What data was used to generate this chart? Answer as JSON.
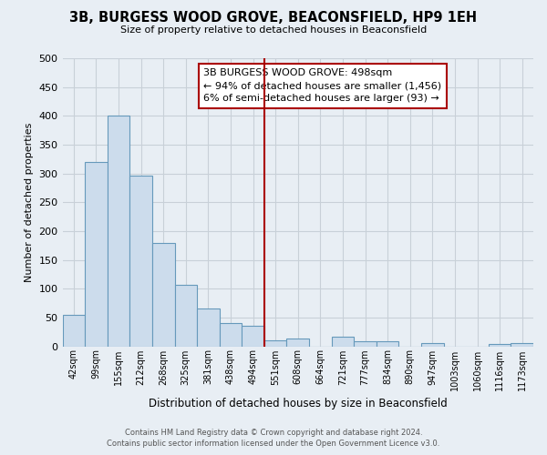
{
  "title": "3B, BURGESS WOOD GROVE, BEACONSFIELD, HP9 1EH",
  "subtitle": "Size of property relative to detached houses in Beaconsfield",
  "xlabel": "Distribution of detached houses by size in Beaconsfield",
  "ylabel": "Number of detached properties",
  "bar_color": "#ccdcec",
  "bar_edge_color": "#6699bb",
  "categories": [
    "42sqm",
    "99sqm",
    "155sqm",
    "212sqm",
    "268sqm",
    "325sqm",
    "381sqm",
    "438sqm",
    "494sqm",
    "551sqm",
    "608sqm",
    "664sqm",
    "721sqm",
    "777sqm",
    "834sqm",
    "890sqm",
    "947sqm",
    "1003sqm",
    "1060sqm",
    "1116sqm",
    "1173sqm"
  ],
  "values": [
    55,
    320,
    400,
    297,
    179,
    107,
    65,
    41,
    36,
    10,
    13,
    0,
    16,
    9,
    8,
    0,
    5,
    0,
    0,
    4,
    5
  ],
  "ylim": [
    0,
    500
  ],
  "yticks": [
    0,
    50,
    100,
    150,
    200,
    250,
    300,
    350,
    400,
    450,
    500
  ],
  "vline_x": 8.5,
  "vline_color": "#aa0000",
  "annotation_title": "3B BURGESS WOOD GROVE: 498sqm",
  "annotation_line1": "← 94% of detached houses are smaller (1,456)",
  "annotation_line2": "6% of semi-detached houses are larger (93) →",
  "annotation_box_color": "#ffffff",
  "annotation_box_edge": "#aa0000",
  "footer1": "Contains HM Land Registry data © Crown copyright and database right 2024.",
  "footer2": "Contains public sector information licensed under the Open Government Licence v3.0.",
  "background_color": "#e8eef4",
  "grid_color": "#c8d0d8",
  "plot_bg_color": "#e8eef4"
}
